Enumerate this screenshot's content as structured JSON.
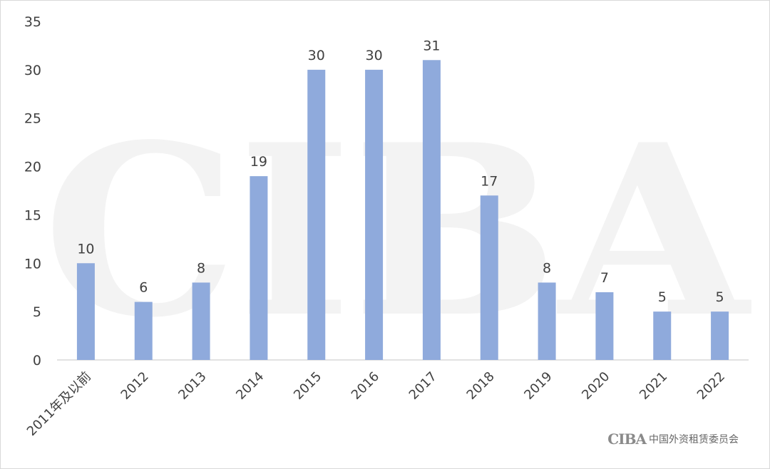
{
  "watermark": "CIBA",
  "logo": {
    "mark": "CIBA",
    "text": "中国外资租赁委员会"
  },
  "chart_data": {
    "type": "bar",
    "categories": [
      "2011年及以前",
      "2012",
      "2013",
      "2014",
      "2015",
      "2016",
      "2017",
      "2018",
      "2019",
      "2020",
      "2021",
      "2022"
    ],
    "values": [
      10,
      6,
      8,
      19,
      30,
      30,
      31,
      17,
      8,
      7,
      5,
      5
    ],
    "ylim": [
      0,
      35
    ],
    "yticks": [
      0,
      5,
      10,
      15,
      20,
      25,
      30,
      35
    ],
    "bar_color": "#8faadc",
    "grid": false,
    "legend": "none"
  }
}
